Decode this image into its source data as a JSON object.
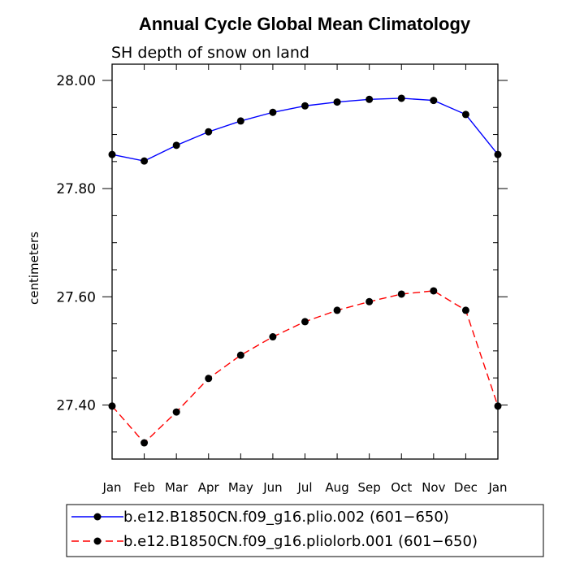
{
  "chart_data": {
    "type": "line",
    "title": "Annual Cycle Global Mean Climatology",
    "subtitle": "SH depth of snow on land",
    "xlabel": "",
    "ylabel": "centimeters",
    "categories": [
      "Jan",
      "Feb",
      "Mar",
      "Apr",
      "May",
      "Jun",
      "Jul",
      "Aug",
      "Sep",
      "Oct",
      "Nov",
      "Dec",
      "Jan"
    ],
    "ylim": [
      27.3,
      28.03
    ],
    "yticks": [
      27.4,
      27.6,
      27.8,
      28.0
    ],
    "ytick_labels": [
      "27.40",
      "27.60",
      "27.80",
      "28.00"
    ],
    "yminor_step": 0.05,
    "grid": false,
    "legend_position": "bottom",
    "series": [
      {
        "name": "b.e12.B1850CN.f09_g16.plio.002 (601−650)",
        "color": "#0000ff",
        "dash": "solid",
        "values": [
          27.863,
          27.851,
          27.88,
          27.905,
          27.925,
          27.941,
          27.953,
          27.96,
          27.965,
          27.967,
          27.963,
          27.937,
          27.863
        ]
      },
      {
        "name": "b.e12.B1850CN.f09_g16.pliolorb.001 (601−650)",
        "color": "#ff0000",
        "dash": "dashed",
        "values": [
          27.398,
          27.33,
          27.387,
          27.449,
          27.492,
          27.526,
          27.554,
          27.575,
          27.591,
          27.605,
          27.611,
          27.575,
          27.398
        ]
      }
    ]
  }
}
